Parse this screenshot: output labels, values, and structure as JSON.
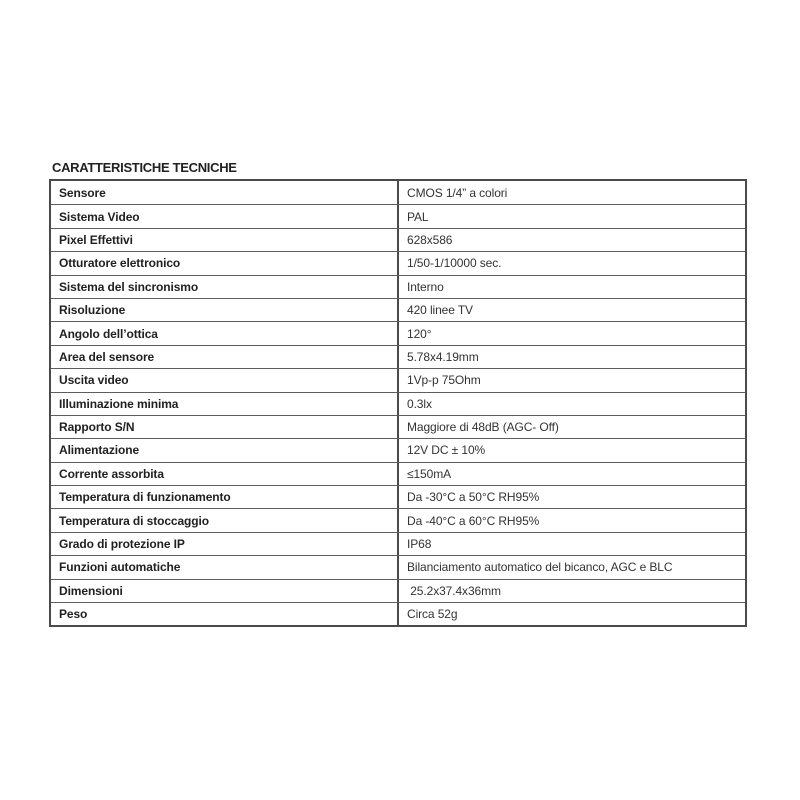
{
  "page": {
    "title": "CARATTERISTICHE TECNICHE"
  },
  "colors": {
    "background": "#ffffff",
    "border_outer": "#4a4a4a",
    "border_inner": "#5d5d5d",
    "label_text": "#212121",
    "value_text": "#333333"
  },
  "table": {
    "rows": [
      {
        "label": "Sensore",
        "value": "CMOS 1/4” a colori"
      },
      {
        "label": "Sistema Video",
        "value": "PAL"
      },
      {
        "label": "Pixel Effettivi",
        "value": "628x586"
      },
      {
        "label": "Otturatore elettronico",
        "value": "1/50-1/10000 sec."
      },
      {
        "label": "Sistema del sincronismo",
        "value": "Interno"
      },
      {
        "label": "Risoluzione",
        "value": "420 linee TV"
      },
      {
        "label": "Angolo dell’ottica",
        "value": "120°"
      },
      {
        "label": "Area del sensore",
        "value": "5.78x4.19mm"
      },
      {
        "label": "Uscita video",
        "value": "1Vp-p 75Ohm"
      },
      {
        "label": "Illuminazione minima",
        "value": "0.3lx"
      },
      {
        "label": "Rapporto S/N",
        "value": "Maggiore di 48dB (AGC- Off)"
      },
      {
        "label": "Alimentazione",
        "value": "12V DC ± 10%"
      },
      {
        "label": "Corrente assorbita",
        "value": "≤150mA"
      },
      {
        "label": "Temperatura di funzionamento",
        "value": "Da -30°C a 50°C RH95%"
      },
      {
        "label": "Temperatura di stoccaggio",
        "value": "Da -40°C a 60°C RH95%"
      },
      {
        "label": "Grado di protezione IP",
        "value": "IP68"
      },
      {
        "label": "Funzioni automatiche",
        "value": "Bilanciamento automatico del bicanco, AGC e BLC"
      },
      {
        "label": "Dimensioni",
        "value": " 25.2x37.4x36mm"
      },
      {
        "label": "Peso",
        "value": "Circa 52g"
      }
    ]
  }
}
